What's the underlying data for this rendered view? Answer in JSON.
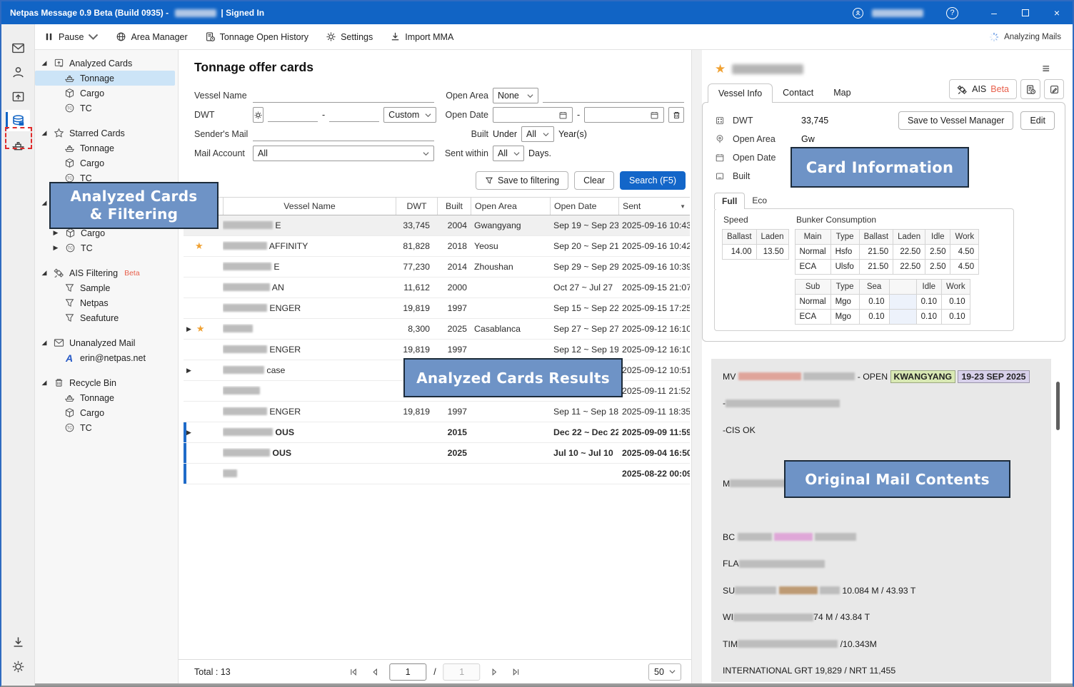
{
  "colors": {
    "accent": "#1164c5",
    "overlay_bg": "#6e93c6",
    "star": "#f0a132",
    "beta": "#e8604c",
    "unread_bar": "#1f6bc9",
    "search_button": "#1366c9",
    "highlight_red": "#dfa49a",
    "highlight_green": "#d9e9b4",
    "highlight_purple": "#d8d1eb",
    "highlight_pink": "#dfa7d8",
    "highlight_brown": "#bd9a74"
  },
  "titlebar": {
    "title_prefix": "Netpas Message 0.9 Beta (Build 0935) - ",
    "title_suffix": "| Signed In",
    "help": "?",
    "minimize": "–",
    "close": "×"
  },
  "toolbar": {
    "items": [
      {
        "label": "Pause",
        "icon": "pause",
        "chevron": true
      },
      {
        "label": "Area Manager",
        "icon": "globe"
      },
      {
        "label": "Tonnage Open History",
        "icon": "docclock"
      },
      {
        "label": "Settings",
        "icon": "gear"
      },
      {
        "label": "Import MMA",
        "icon": "download"
      }
    ],
    "status": "Analyzing Mails"
  },
  "tree": {
    "groups": [
      {
        "label": "Analyzed Cards",
        "icon": "cards",
        "items": [
          {
            "label": "Tonnage",
            "icon": "ship",
            "selected": true
          },
          {
            "label": "Cargo",
            "icon": "cube"
          },
          {
            "label": "TC",
            "icon": "tc"
          }
        ]
      },
      {
        "label": "Starred Cards",
        "icon": "staro",
        "items": [
          {
            "label": "Tonnage",
            "icon": "ship"
          },
          {
            "label": "Cargo",
            "icon": "cube"
          },
          {
            "label": "TC",
            "icon": "tc"
          }
        ]
      },
      {
        "label": "",
        "icon": "none",
        "items": [
          {
            "label": "",
            "icon": "none"
          },
          {
            "label": "Cargo",
            "icon": "cube",
            "collapsed": true
          },
          {
            "label": "TC",
            "icon": "tc",
            "collapsed": true
          }
        ]
      },
      {
        "label": "AIS Filtering",
        "badge": "Beta",
        "icon": "satellite",
        "items": [
          {
            "label": "Sample",
            "icon": "funnel"
          },
          {
            "label": "Netpas",
            "icon": "funnel"
          },
          {
            "label": "Seafuture",
            "icon": "funnel"
          }
        ]
      },
      {
        "label": "Unanalyzed Mail",
        "icon": "mail",
        "items": [
          {
            "label": "erin@netpas.net",
            "icon": "appA"
          }
        ]
      },
      {
        "label": "Recycle Bin",
        "icon": "trash",
        "items": [
          {
            "label": "Tonnage",
            "icon": "ship"
          },
          {
            "label": "Cargo",
            "icon": "cube"
          },
          {
            "label": "TC",
            "icon": "tc"
          }
        ]
      }
    ]
  },
  "filters": {
    "title": "Tonnage offer cards",
    "vessel_name_label": "Vessel Name",
    "dwt_label": "DWT",
    "dwt_dash": "-",
    "dwt_preset": "Custom",
    "senders_mail_label": "Sender's Mail",
    "mail_account_label": "Mail Account",
    "mail_account_value": "All",
    "open_area_label": "Open Area",
    "open_area_value": "None",
    "open_date_label": "Open Date",
    "open_date_dash": "-",
    "built_label": "Built",
    "built_under": "Under",
    "built_value": "All",
    "built_suffix": "Year(s)",
    "sent_within_label": "Sent within",
    "sent_within_value": "All",
    "sent_within_suffix": "Days.",
    "save_to_filtering": "Save to filtering",
    "clear": "Clear",
    "search": "Search (F5)"
  },
  "results": {
    "columns": {
      "name": "Vessel Name",
      "dwt": "DWT",
      "built": "Built",
      "area": "Open Area",
      "dates": "Open Date",
      "sent": "Sent"
    },
    "sort_icon": "▼",
    "rows": [
      {
        "selected": true,
        "blur": 70,
        "name": "E",
        "dwt": "33,745",
        "built": "2004",
        "area": "Gwangyang",
        "dates": "Sep 19 ~ Sep 23",
        "sent": "2025-09-16 10:43"
      },
      {
        "star": true,
        "blur": 62,
        "name": "AFFINITY",
        "dwt": "81,828",
        "built": "2018",
        "area": "Yeosu",
        "dates": "Sep 20 ~ Sep 21",
        "sent": "2025-09-16 10:42"
      },
      {
        "blur": 68,
        "name": "E",
        "dwt": "77,230",
        "built": "2014",
        "area": "Zhoushan",
        "dates": "Sep 29 ~ Sep 29",
        "sent": "2025-09-16 10:39"
      },
      {
        "blur": 66,
        "name": "AN",
        "dwt": "11,612",
        "built": "2000",
        "area": "",
        "dates": "Oct 27 ~ Jul 27",
        "sent": "2025-09-15 21:07"
      },
      {
        "blur": 62,
        "name": "ENGER",
        "dwt": "19,819",
        "built": "1997",
        "area": "",
        "dates": "Sep 15 ~ Sep 22",
        "sent": "2025-09-15 17:25"
      },
      {
        "expand": true,
        "star": true,
        "blur": 42,
        "name": "",
        "dwt": "8,300",
        "built": "2025",
        "area": "Casablanca",
        "dates": "Sep 27 ~ Sep 27",
        "sent": "2025-09-12 16:10"
      },
      {
        "blur": 62,
        "name": "ENGER",
        "dwt": "19,819",
        "built": "1997",
        "area": "",
        "dates": "Sep 12 ~ Sep 19",
        "sent": "2025-09-12 16:10"
      },
      {
        "expand": true,
        "blur": 58,
        "name": "case",
        "dwt": "",
        "built": "",
        "area": "",
        "dates": "",
        "sent": "2025-09-12 10:51"
      },
      {
        "blur": 52,
        "name": "",
        "dwt": "",
        "built": "",
        "area": "",
        "dates": "",
        "sent": "2025-09-11 21:52"
      },
      {
        "blur": 62,
        "name": "ENGER",
        "dwt": "19,819",
        "built": "1997",
        "area": "",
        "dates": "Sep 11 ~ Sep 18",
        "sent": "2025-09-11 18:35"
      },
      {
        "expand": true,
        "unread": true,
        "blur": 70,
        "name": "OUS",
        "dwt": "",
        "built": "2015",
        "area": "",
        "dates": "Dec 22 ~ Dec 22",
        "sent": "2025-09-09 11:59"
      },
      {
        "unread": true,
        "blur": 66,
        "name": "OUS",
        "dwt": "",
        "built": "2025",
        "area": "",
        "dates": "Jul 10 ~ Jul 10",
        "sent": "2025-09-04 16:50"
      },
      {
        "unread": true,
        "blur": 20,
        "name": "",
        "dwt": "",
        "built": "",
        "area": "",
        "dates": "",
        "sent": "2025-08-22 00:09"
      }
    ]
  },
  "pager": {
    "total": "Total : 13",
    "page": "1",
    "separator": "/",
    "pages": "1",
    "per_page": "50"
  },
  "card": {
    "tabs": [
      "Vessel Info",
      "Contact",
      "Map"
    ],
    "ais_label": "AIS",
    "ais_badge": "Beta",
    "save_button": "Save to Vessel Manager",
    "edit_button": "Edit",
    "fields": [
      {
        "icon": "dwt",
        "label": "DWT",
        "value": "33,745"
      },
      {
        "icon": "pin",
        "label": "Open Area",
        "value": "Gw"
      },
      {
        "icon": "calendar",
        "label": "Open Date",
        "value": "20"
      },
      {
        "icon": "built",
        "label": "Built",
        "value": "2004"
      }
    ],
    "mode_tabs": [
      "Full",
      "Eco"
    ],
    "speed_label": "Speed",
    "bunker_label": "Bunker Consumption",
    "speed_table": {
      "headers": [
        "Ballast",
        "Laden"
      ],
      "rows": [
        [
          "14.00",
          "13.50"
        ]
      ]
    },
    "main_table": {
      "headers": [
        "Main",
        "Type",
        "Ballast",
        "Laden",
        "Idle",
        "Work"
      ],
      "rows": [
        [
          "Normal",
          "Hsfo",
          "21.50",
          "22.50",
          "2.50",
          "4.50"
        ],
        [
          "ECA",
          "Ulsfo",
          "21.50",
          "22.50",
          "2.50",
          "4.50"
        ]
      ]
    },
    "sub_table": {
      "headers": [
        "Sub",
        "Type",
        "Sea",
        "",
        "Idle",
        "Work"
      ],
      "rows": [
        [
          "Normal",
          "Mgo",
          "0.10",
          "",
          "0.10",
          "0.10"
        ],
        [
          "ECA",
          "Mgo",
          "0.10",
          "",
          "0.10",
          "0.10"
        ]
      ]
    }
  },
  "mail": {
    "lines": [
      {
        "segments": [
          {
            "t": "MV "
          },
          {
            "r": 88,
            "hl": "#dfa49a"
          },
          {
            "t": " "
          },
          {
            "r": 72
          },
          {
            "t": " - OPEN "
          },
          {
            "t": "KWANGYANG",
            "hl": "#d9e9b4"
          },
          {
            "t": " "
          },
          {
            "t": "19-23 SEP 2025",
            "hl": "#d8d1eb"
          }
        ]
      },
      {
        "segments": [
          {
            "t": "-"
          },
          {
            "r": 160
          }
        ]
      },
      {
        "segments": [
          {
            "t": "-CIS OK"
          }
        ]
      },
      {
        "segments": []
      },
      {
        "segments": [
          {
            "t": "M"
          },
          {
            "r": 100
          }
        ]
      },
      {
        "segments": []
      },
      {
        "segments": [
          {
            "t": "BC "
          },
          {
            "r": 48
          },
          {
            "t": " "
          },
          {
            "r": 54,
            "hl": "#dfa7d8"
          },
          {
            "t": " "
          },
          {
            "r": 58
          }
        ]
      },
      {
        "segments": [
          {
            "t": "FLA"
          },
          {
            "r": 120
          }
        ]
      },
      {
        "segments": [
          {
            "t": "SU"
          },
          {
            "r": 58
          },
          {
            "t": " "
          },
          {
            "r": 54,
            "hl": "#bd9a74"
          },
          {
            "t": " "
          },
          {
            "r": 28
          },
          {
            "t": " 10.084 M / 43.93 T"
          }
        ]
      },
      {
        "segments": [
          {
            "t": "WI"
          },
          {
            "r": 112
          },
          {
            "t": "74 M / 43.84 T"
          }
        ]
      },
      {
        "segments": [
          {
            "t": "TIM"
          },
          {
            "r": 140
          },
          {
            "t": " /10.343M"
          }
        ]
      },
      {
        "segments": [
          {
            "t": "INTERNATIONAL GRT 19,829 / NRT 11,455"
          }
        ]
      }
    ]
  },
  "annotations": {
    "filtering_line1": "Analyzed Cards",
    "filtering_line2": "& Filtering",
    "results": "Analyzed Cards Results",
    "card_info": "Card Information",
    "mail_contents": "Original Mail Contents"
  }
}
